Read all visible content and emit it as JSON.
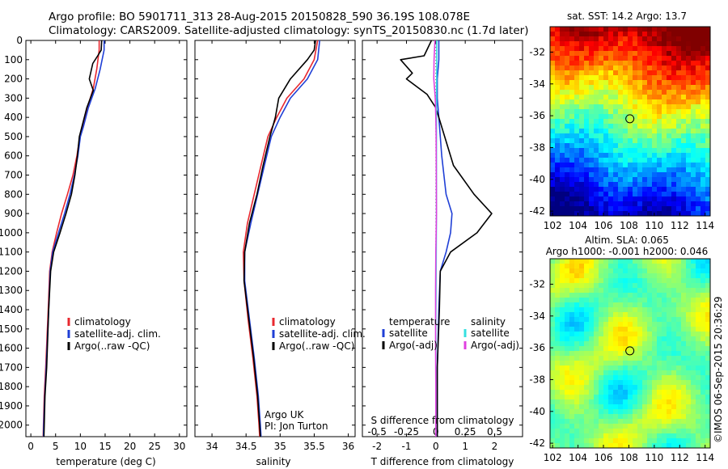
{
  "header": {
    "line1": "Argo profile: BO 5901711_313 28-Aug-2015 20150828_590 36.19S 108.078E",
    "line2": "Climatology: CARS2009. Satellite-adjusted climatology: synTS_20150830.nc (1.7d later)"
  },
  "colors": {
    "climatology": "#e8282f",
    "satellite": "#1f3fd6",
    "argo": "#000000",
    "sal_satellite": "#36e0e0",
    "sal_argo": "#e040e0"
  },
  "depth_axis": {
    "ticks": [
      0,
      100,
      200,
      300,
      400,
      500,
      600,
      700,
      800,
      900,
      1000,
      1100,
      1200,
      1300,
      1400,
      1500,
      1600,
      1700,
      1800,
      1900,
      2000
    ],
    "range": [
      0,
      2060
    ]
  },
  "chart_data": [
    {
      "type": "line",
      "panel": "temperature",
      "xlabel": "temperature (deg C)",
      "xlim": [
        -1,
        31.5
      ],
      "xticks": [
        0,
        5,
        10,
        15,
        20,
        25,
        30
      ],
      "legend": [
        "climatology",
        "satellite-adj. clim.",
        "Argo(..raw -QC)"
      ],
      "series": [
        {
          "name": "climatology",
          "color": "#e8282f",
          "points": [
            [
              13.8,
              0
            ],
            [
              13.8,
              50
            ],
            [
              13.3,
              150
            ],
            [
              12.6,
              250
            ],
            [
              11.4,
              350
            ],
            [
              10.5,
              450
            ],
            [
              9.9,
              500
            ],
            [
              9.3,
              600
            ],
            [
              8.5,
              700
            ],
            [
              7.4,
              800
            ],
            [
              6.2,
              900
            ],
            [
              5.2,
              1000
            ],
            [
              4.3,
              1100
            ],
            [
              3.8,
              1200
            ],
            [
              3.5,
              1400
            ],
            [
              3.0,
              1700
            ],
            [
              2.7,
              1850
            ],
            [
              2.55,
              2000
            ],
            [
              2.5,
              2060
            ]
          ]
        },
        {
          "name": "satellite-adj. clim.",
          "color": "#1f3fd6",
          "points": [
            [
              14.8,
              0
            ],
            [
              14.8,
              50
            ],
            [
              14.0,
              150
            ],
            [
              13.0,
              250
            ],
            [
              11.6,
              350
            ],
            [
              10.6,
              450
            ],
            [
              10.0,
              500
            ],
            [
              9.5,
              600
            ],
            [
              8.8,
              700
            ],
            [
              7.9,
              800
            ],
            [
              6.8,
              900
            ],
            [
              5.6,
              1000
            ],
            [
              4.4,
              1100
            ],
            [
              3.9,
              1200
            ],
            [
              3.6,
              1400
            ],
            [
              3.1,
              1700
            ],
            [
              2.8,
              1850
            ],
            [
              2.6,
              2000
            ],
            [
              2.55,
              2060
            ]
          ]
        },
        {
          "name": "Argo(..raw -QC)",
          "color": "#000000",
          "points": [
            [
              14.3,
              0
            ],
            [
              14.2,
              50
            ],
            [
              13.5,
              80
            ],
            [
              12.5,
              120
            ],
            [
              11.8,
              200
            ],
            [
              12.6,
              260
            ],
            [
              11.3,
              350
            ],
            [
              10.3,
              450
            ],
            [
              9.8,
              500
            ],
            [
              9.4,
              600
            ],
            [
              8.9,
              700
            ],
            [
              8.2,
              800
            ],
            [
              7.1,
              900
            ],
            [
              5.9,
              1000
            ],
            [
              4.6,
              1100
            ],
            [
              4.0,
              1200
            ],
            [
              3.6,
              1400
            ],
            [
              3.2,
              1700
            ],
            [
              2.85,
              1850
            ],
            [
              2.7,
              2000
            ],
            [
              2.65,
              2060
            ]
          ]
        }
      ]
    },
    {
      "type": "line",
      "panel": "salinity",
      "xlabel": "salinity",
      "xlim": [
        33.75,
        36.1
      ],
      "xticks": [
        34,
        34.5,
        35,
        35.5,
        36
      ],
      "legend": [
        "climatology",
        "satellite-adj. clim.",
        "Argo(..raw -QC)"
      ],
      "annotation": [
        "Argo UK",
        "PI: Jon Turton"
      ],
      "series": [
        {
          "name": "climatology",
          "color": "#e8282f",
          "points": [
            [
              35.55,
              0
            ],
            [
              35.5,
              100
            ],
            [
              35.35,
              200
            ],
            [
              35.1,
              300
            ],
            [
              34.95,
              400
            ],
            [
              34.82,
              500
            ],
            [
              34.72,
              650
            ],
            [
              34.62,
              800
            ],
            [
              34.52,
              950
            ],
            [
              34.46,
              1100
            ],
            [
              34.47,
              1250
            ],
            [
              34.53,
              1450
            ],
            [
              34.6,
              1650
            ],
            [
              34.66,
              1850
            ],
            [
              34.69,
              2000
            ],
            [
              34.7,
              2060
            ]
          ]
        },
        {
          "name": "satellite-adj. clim.",
          "color": "#1f3fd6",
          "points": [
            [
              35.58,
              0
            ],
            [
              35.55,
              100
            ],
            [
              35.4,
              200
            ],
            [
              35.15,
              300
            ],
            [
              35.0,
              400
            ],
            [
              34.87,
              500
            ],
            [
              34.77,
              650
            ],
            [
              34.67,
              800
            ],
            [
              34.57,
              950
            ],
            [
              34.48,
              1100
            ],
            [
              34.48,
              1250
            ],
            [
              34.55,
              1450
            ],
            [
              34.62,
              1650
            ],
            [
              34.68,
              1850
            ],
            [
              34.71,
              2000
            ],
            [
              34.72,
              2060
            ]
          ]
        },
        {
          "name": "Argo(..raw -QC)",
          "color": "#000000",
          "points": [
            [
              35.52,
              0
            ],
            [
              35.5,
              50
            ],
            [
              35.4,
              100
            ],
            [
              35.15,
              200
            ],
            [
              34.98,
              300
            ],
            [
              34.93,
              400
            ],
            [
              34.85,
              500
            ],
            [
              34.75,
              650
            ],
            [
              34.66,
              800
            ],
            [
              34.55,
              950
            ],
            [
              34.48,
              1100
            ],
            [
              34.47,
              1250
            ],
            [
              34.54,
              1450
            ],
            [
              34.61,
              1650
            ],
            [
              34.67,
              1850
            ],
            [
              34.7,
              2000
            ],
            [
              34.71,
              2060
            ]
          ]
        }
      ]
    },
    {
      "type": "line",
      "panel": "difference",
      "xlabel": "T difference from climatology",
      "xlabel_top": "S difference from climatology",
      "xlim": [
        -2.5,
        2.95
      ],
      "xticks": [
        -2,
        -1,
        0,
        1,
        2
      ],
      "xticks_s": [
        -0.5,
        -0.25,
        0,
        0.25,
        0.5
      ],
      "legend_headers": [
        "temperature",
        "salinity"
      ],
      "legend_left": [
        "satellite",
        "Argo(-adj)"
      ],
      "legend_right": [
        "satellite",
        "Argo(-adj)"
      ],
      "series": [
        {
          "name": "temperature satellite",
          "color": "#1f3fd6",
          "points": [
            [
              0.1,
              0
            ],
            [
              0.1,
              100
            ],
            [
              0.05,
              200
            ],
            [
              0.05,
              300
            ],
            [
              0.1,
              400
            ],
            [
              0.2,
              600
            ],
            [
              0.35,
              800
            ],
            [
              0.55,
              900
            ],
            [
              0.5,
              1000
            ],
            [
              0.35,
              1100
            ],
            [
              0.15,
              1200
            ],
            [
              0.1,
              1400
            ],
            [
              0.05,
              1700
            ],
            [
              0.05,
              2060
            ]
          ]
        },
        {
          "name": "temperature Argo(-adj)",
          "color": "#000000",
          "points": [
            [
              -0.15,
              0
            ],
            [
              -0.4,
              80
            ],
            [
              -1.2,
              100
            ],
            [
              -0.8,
              170
            ],
            [
              -1.0,
              200
            ],
            [
              -0.3,
              280
            ],
            [
              0.0,
              350
            ],
            [
              0.1,
              400
            ],
            [
              0.3,
              500
            ],
            [
              0.6,
              650
            ],
            [
              1.3,
              800
            ],
            [
              1.9,
              900
            ],
            [
              1.4,
              1000
            ],
            [
              0.5,
              1100
            ],
            [
              0.15,
              1200
            ],
            [
              0.12,
              1400
            ],
            [
              0.05,
              1700
            ],
            [
              0.05,
              2060
            ]
          ]
        },
        {
          "name": "salinity satellite",
          "color": "#36e0e0",
          "points": [
            [
              0.03,
              0
            ],
            [
              0.03,
              150
            ],
            [
              0.02,
              300
            ],
            [
              0.02,
              600
            ],
            [
              0.02,
              900
            ],
            [
              0.01,
              1200
            ],
            [
              0.0,
              1500
            ],
            [
              0.0,
              2060
            ]
          ]
        },
        {
          "name": "salinity Argo(-adj)",
          "color": "#e040e0",
          "points": [
            [
              -0.03,
              0
            ],
            [
              -0.06,
              100
            ],
            [
              -0.07,
              200
            ],
            [
              -0.02,
              300
            ],
            [
              0.0,
              400
            ],
            [
              0.01,
              500
            ],
            [
              0.02,
              900
            ],
            [
              0.0,
              1100
            ],
            [
              -0.01,
              1300
            ],
            [
              -0.01,
              1600
            ],
            [
              0.0,
              1800
            ],
            [
              0.0,
              2060
            ]
          ]
        }
      ]
    },
    {
      "type": "heatmap",
      "panel": "sst_map",
      "title": "sat. SST: 14.2  Argo: 13.7",
      "xlim": [
        101.8,
        114.4
      ],
      "ylim": [
        -42.3,
        -30.4
      ],
      "xticks": [
        102,
        104,
        106,
        108,
        110,
        112,
        114
      ],
      "yticks": [
        -32,
        -34,
        -36,
        -38,
        -40,
        -42
      ],
      "marker": [
        108.078,
        -36.19
      ]
    },
    {
      "type": "heatmap",
      "panel": "sla_map",
      "title": "Altim. SLA: 0.065",
      "subtitle": "Argo h1000: -0.001 h2000: 0.046",
      "xlim": [
        101.8,
        114.4
      ],
      "ylim": [
        -42.3,
        -30.4
      ],
      "xticks": [
        102,
        104,
        106,
        108,
        110,
        112,
        114
      ],
      "yticks": [
        -32,
        -34,
        -36,
        -38,
        -40,
        -42
      ],
      "marker": [
        108.078,
        -36.19
      ]
    }
  ],
  "credit": "©IMOS 06-Sep-2015 20:36:29"
}
